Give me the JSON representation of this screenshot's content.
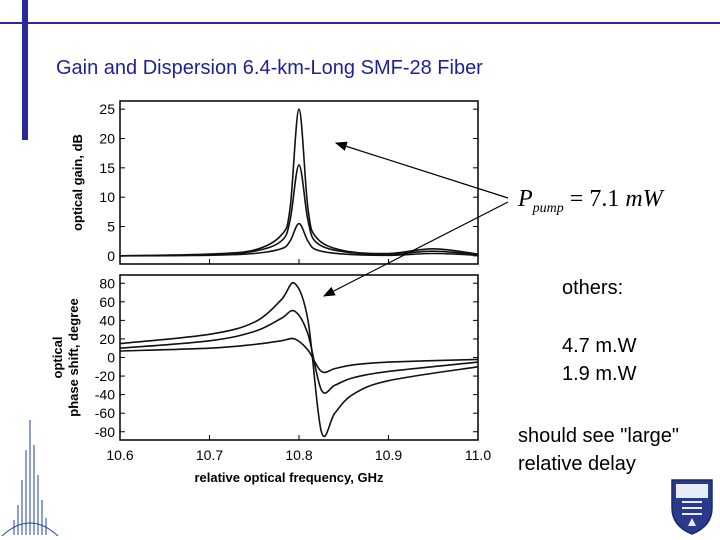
{
  "slide": {
    "title": "Gain and Dispersion 6.4-km-Long SMF-28 Fiber",
    "formula": {
      "p": "P",
      "sub": "pump",
      "eq": " = 7.1 ",
      "m": "m",
      "w": "W"
    },
    "notes": {
      "others": "others:",
      "value1": "4.7 m.W",
      "value2": "1.9 m.W",
      "delay1": "should see \"large\"",
      "delay2": "relative delay"
    }
  },
  "chart_data": [
    {
      "type": "line",
      "title": "",
      "xlabel": "",
      "ylabel": "optical gain, dB",
      "xlim": [
        10.6,
        11.0
      ],
      "ylim": [
        0,
        25
      ],
      "yticks": [
        "0",
        "5",
        "10",
        "15",
        "20",
        "25"
      ],
      "series": [
        {
          "x": [
            10.6,
            10.7,
            10.75,
            10.78,
            10.79,
            10.8,
            10.81,
            10.82,
            10.85,
            10.9,
            10.95,
            11.0
          ],
          "values": [
            0,
            0.3,
            1.0,
            3.5,
            8.0,
            25.0,
            8.0,
            3.0,
            0.9,
            0.4,
            1.2,
            0.3
          ]
        },
        {
          "x": [
            10.6,
            10.7,
            10.75,
            10.78,
            10.79,
            10.8,
            10.81,
            10.82,
            10.85,
            10.9,
            10.95,
            11.0
          ],
          "values": [
            0,
            0.2,
            0.8,
            2.5,
            6.0,
            15.5,
            6.0,
            2.2,
            0.7,
            0.3,
            0.8,
            0.2
          ]
        },
        {
          "x": [
            10.6,
            10.7,
            10.75,
            10.78,
            10.79,
            10.8,
            10.81,
            10.82,
            10.85,
            10.9,
            10.95,
            11.0
          ],
          "values": [
            0,
            0.1,
            0.4,
            1.2,
            2.5,
            5.5,
            2.5,
            1.0,
            0.3,
            0.1,
            0.4,
            0.1
          ]
        }
      ]
    },
    {
      "type": "line",
      "title": "",
      "xlabel": "relative optical frequency, GHz",
      "ylabel": "optical phase shift, degree",
      "xlim": [
        10.6,
        11.0
      ],
      "ylim": [
        -80,
        80
      ],
      "xticks": [
        "10.6",
        "10.7",
        "10.8",
        "10.9",
        "11.0"
      ],
      "yticks": [
        "80",
        "60",
        "40",
        "20",
        "0",
        "-20",
        "-40",
        "-60",
        "-80"
      ],
      "series": [
        {
          "x": [
            10.6,
            10.7,
            10.75,
            10.78,
            10.795,
            10.81,
            10.825,
            10.84,
            10.86,
            10.9,
            11.0
          ],
          "values": [
            15,
            25,
            38,
            62,
            80,
            40,
            -80,
            -60,
            -40,
            -25,
            -10
          ]
        },
        {
          "x": [
            10.6,
            10.7,
            10.75,
            10.78,
            10.795,
            10.81,
            10.825,
            10.84,
            10.86,
            10.9,
            11.0
          ],
          "values": [
            10,
            18,
            28,
            42,
            50,
            25,
            -35,
            -30,
            -22,
            -15,
            -5
          ]
        },
        {
          "x": [
            10.6,
            10.7,
            10.75,
            10.78,
            10.795,
            10.81,
            10.825,
            10.84,
            10.86,
            10.9,
            11.0
          ],
          "values": [
            7,
            10,
            14,
            18,
            20,
            8,
            -15,
            -12,
            -8,
            -5,
            -2
          ]
        }
      ]
    }
  ]
}
